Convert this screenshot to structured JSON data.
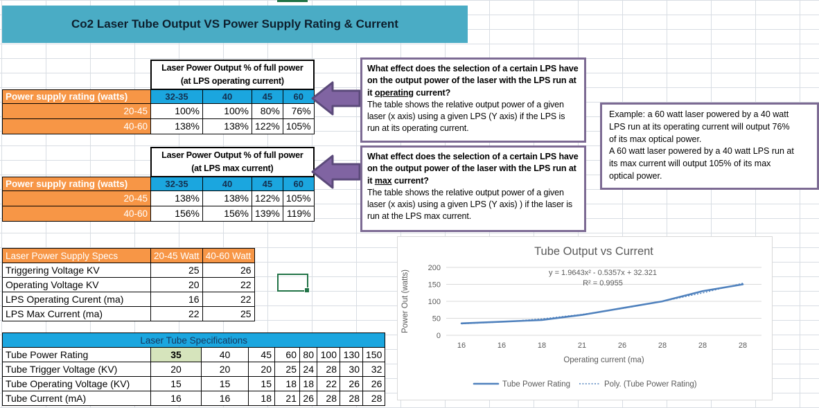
{
  "title_banner": "Co2 Laser Tube Output VS Power Supply Rating & Current",
  "colors": {
    "teal_banner": "#4AACC5",
    "orange_header": "#F79646",
    "blue_header": "#1BA6DF",
    "purple_arrow": "#8064A2",
    "box_border_purple": "#7C6A93",
    "chart_line": "#4F81BD",
    "highlight_green_cell": "#D6E4BC",
    "selection_green": "#217346"
  },
  "op_table": {
    "header_line1": "Laser Power Output % of full power",
    "header_line2": "(at LPS operating current)",
    "row_axis_label": "Power supply rating (watts)",
    "col_headers": [
      "32-35",
      "40",
      "45",
      "60"
    ],
    "rows": [
      {
        "label": "20-45",
        "values": [
          "100%",
          "100%",
          "80%",
          "76%"
        ]
      },
      {
        "label": "40-60",
        "values": [
          "138%",
          "138%",
          "122%",
          "105%"
        ]
      }
    ]
  },
  "max_table": {
    "header_line1": "Laser Power Output % of full power",
    "header_line2": "(at LPS max current)",
    "row_axis_label": "Power supply rating (watts)",
    "col_headers": [
      "32-35",
      "40",
      "45",
      "60"
    ],
    "rows": [
      {
        "label": "20-45",
        "values": [
          "138%",
          "138%",
          "122%",
          "105%"
        ]
      },
      {
        "label": "40-60",
        "values": [
          "156%",
          "156%",
          "139%",
          "119%"
        ]
      }
    ]
  },
  "question1": {
    "bold_before": "What effect does the selection of a certain LPS have on the output power of the laser with the LPS run at it ",
    "underlined": "operating",
    "bold_after": " current?",
    "body": "The table shows the relative output  power of a given laser (x axis) using a given LPS (Y axis) if the LPS is run at its operating current."
  },
  "question2": {
    "bold_before": "What effect does the selection of a certain LPS have on the output power of the laser with the LPS run at it ",
    "underlined": "max",
    "bold_after": " current?",
    "body": "The table shows the relative output  power of a given laser (x axis) using a given LPS (Y axis) ) if the laser is run at the LPS max current."
  },
  "example_box": {
    "lines": [
      "Example: a 60 watt laser powered by a 40 watt",
      "LPS run at its operating current will output 76%",
      "of its max optical power.",
      "A 60 watt laser powered by a 40 watt LPS run at",
      "its max current will output 105% of its max",
      "optical power."
    ]
  },
  "lps_table": {
    "headers": [
      "Laser Power Supply  Specs",
      "20-45 Watt",
      "40-60 Watt"
    ],
    "rows": [
      {
        "label": "Triggering Voltage KV",
        "values": [
          "25",
          "26"
        ]
      },
      {
        "label": "Operating Voltage KV",
        "values": [
          "20",
          "22"
        ]
      },
      {
        "label": "LPS Operating Curent (ma)",
        "values": [
          "16",
          "22"
        ]
      },
      {
        "label": "LPS Max Current (ma)",
        "values": [
          "22",
          "25"
        ]
      }
    ]
  },
  "tube_table": {
    "title": "Laser Tube Specifications",
    "rows": [
      {
        "label": "Tube Power Rating",
        "values": [
          "35",
          "40",
          "45",
          "60",
          "80",
          "100",
          "130",
          "150"
        ]
      },
      {
        "label": "Tube Trigger Voltage (KV)",
        "values": [
          "20",
          "20",
          "20",
          "25",
          "24",
          "28",
          "30",
          "32"
        ]
      },
      {
        "label": "Tube Operating Voltage (KV)",
        "values": [
          "15",
          "15",
          "15",
          "18",
          "18",
          "22",
          "26",
          "26"
        ]
      },
      {
        "label": "Tube Current (mA)",
        "values": [
          "16",
          "16",
          "18",
          "21",
          "26",
          "28",
          "28",
          "28"
        ]
      }
    ]
  },
  "chart_data": {
    "type": "line",
    "title": "Tube Output vs Current",
    "xlabel": "Operating current (ma)",
    "ylabel": "Power Out (watts)",
    "categories": [
      "16",
      "16",
      "18",
      "21",
      "26",
      "28",
      "28",
      "28"
    ],
    "series": [
      {
        "name": "Tube Power Rating",
        "values": [
          35,
          40,
          45,
          60,
          80,
          100,
          130,
          150
        ]
      }
    ],
    "trendline": {
      "name": "Poly. (Tube Power Rating)",
      "equation": "y = 1.9643x² - 0.5357x + 32.321",
      "r2": "R² = 0.9955",
      "values": [
        33.75,
        39.11,
        48.4,
        61.6,
        78.7,
        99.7,
        124.6,
        153.4
      ]
    },
    "ylim": [
      0,
      200
    ],
    "yticks": [
      0,
      50,
      100,
      150,
      200
    ],
    "grid": true,
    "legend_position": "bottom"
  }
}
